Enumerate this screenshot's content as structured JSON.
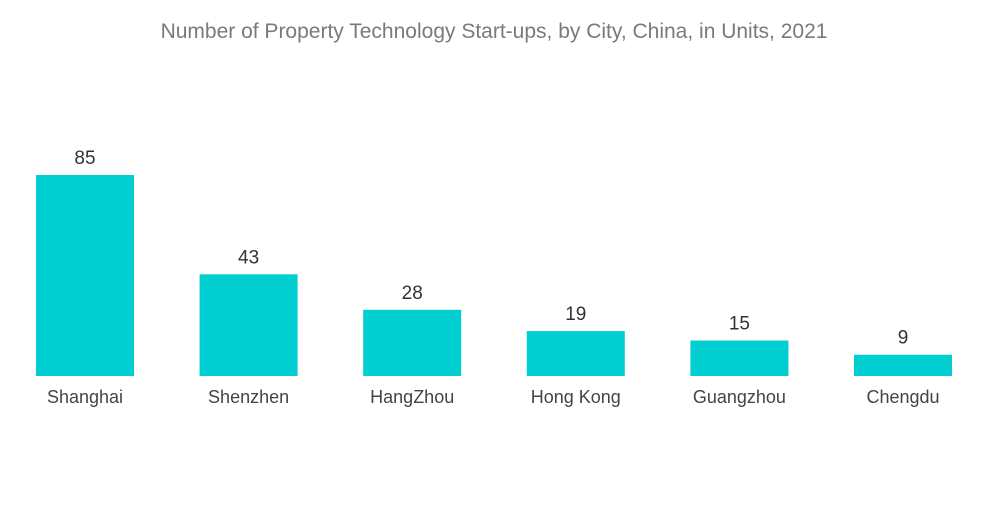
{
  "chart_data": {
    "type": "bar",
    "title": "Number of Property Technology Start-ups, by City, China, in Units, 2021",
    "xlabel": "",
    "ylabel": "",
    "categories": [
      "Shanghai",
      "Shenzhen",
      "HangZhou",
      "Hong Kong",
      "Guangzhou",
      "Chengdu"
    ],
    "values": [
      85,
      43,
      28,
      19,
      15,
      9
    ],
    "ylim": [
      0,
      85
    ],
    "grid": false,
    "legend": "none",
    "colors": {
      "bar": "#00CED1",
      "title": "#7a7a7a",
      "label": "#444444",
      "value": "#333333"
    }
  }
}
